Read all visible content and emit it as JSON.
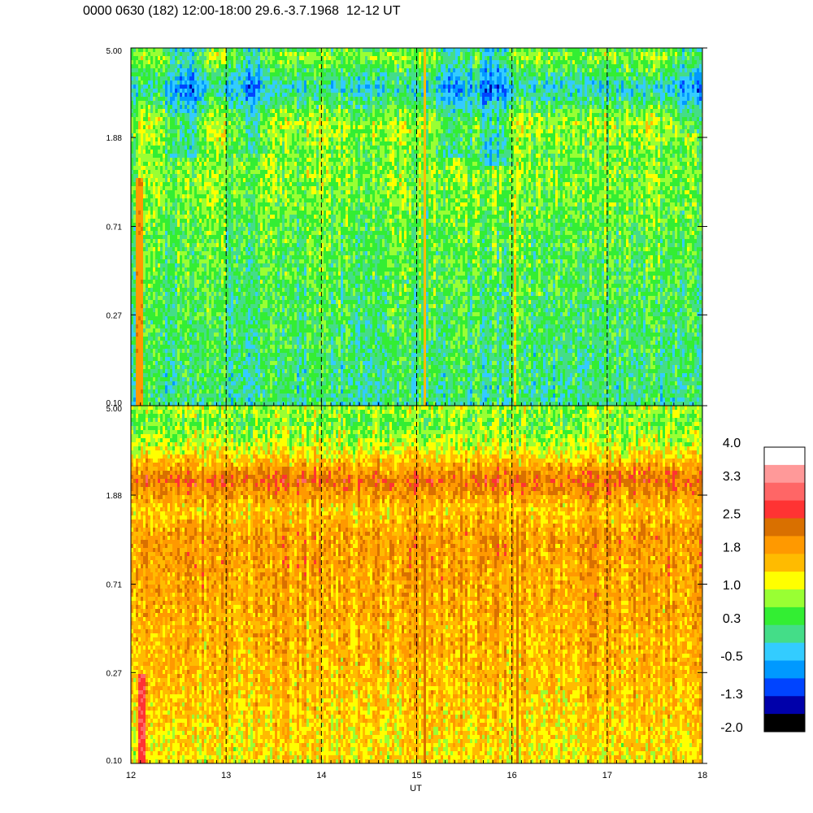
{
  "title": "0000 0630 (182) 12:00-18:00 29.6.-3.7.1968  12-12 UT",
  "chart_data": [
    {
      "type": "heatmap",
      "panel": "top",
      "y_scale": "log",
      "ylim": [
        0.1,
        5.0
      ],
      "y_ticks": [
        "5.00",
        "1.88",
        "0.71",
        "0.27",
        "0.10"
      ],
      "y_tick_values": [
        5.0,
        1.88,
        0.71,
        0.27,
        0.1
      ],
      "xlim": [
        12,
        18
      ],
      "x_ticks": [
        "12",
        "13",
        "14",
        "15",
        "16",
        "17",
        "18"
      ],
      "x_tick_values": [
        12,
        13,
        14,
        15,
        16,
        17,
        18
      ],
      "dashed_lines_x": [
        13,
        14,
        15,
        16,
        17
      ],
      "profile": [
        {
          "y": 0.1,
          "value": 0.1
        },
        {
          "y": 0.27,
          "value": 0.3
        },
        {
          "y": 0.71,
          "value": 0.5
        },
        {
          "y": 1.2,
          "value": 0.7
        },
        {
          "y": 1.6,
          "value": 0.6
        },
        {
          "y": 2.2,
          "value": 0.9
        },
        {
          "y": 3.2,
          "value": -0.2
        },
        {
          "y": 4.6,
          "value": 0.8
        },
        {
          "y": 5.0,
          "value": 0.3
        }
      ],
      "dips": [
        {
          "x": 12.6,
          "min_y": 1.5,
          "delta": -0.9
        },
        {
          "x": 13.3,
          "min_y": 1.6,
          "delta": -0.6
        },
        {
          "x": 15.4,
          "min_y": 1.5,
          "delta": -0.8
        },
        {
          "x": 15.8,
          "min_y": 1.4,
          "delta": -0.9
        },
        {
          "x": 17.9,
          "min_y": 2.0,
          "delta": -0.6
        }
      ],
      "spikes": [
        {
          "x": 12.08,
          "width": 0.08,
          "value": 2.0,
          "max_y": 1.2
        },
        {
          "x": 15.08,
          "width": 0.02,
          "value": 1.6,
          "max_y": 5.0
        },
        {
          "x": 16.03,
          "width": 0.02,
          "value": 1.4,
          "max_y": 1.0
        }
      ]
    },
    {
      "type": "heatmap",
      "panel": "bottom",
      "y_scale": "log",
      "ylim": [
        0.1,
        5.0
      ],
      "y_ticks": [
        "5.00",
        "1.88",
        "0.71",
        "0.27",
        "0.10"
      ],
      "y_tick_values": [
        5.0,
        1.88,
        0.71,
        0.27,
        0.1
      ],
      "xlim": [
        12,
        18
      ],
      "x_ticks": [
        "12",
        "13",
        "14",
        "15",
        "16",
        "17",
        "18"
      ],
      "x_tick_values": [
        12,
        13,
        14,
        15,
        16,
        17,
        18
      ],
      "xlabel": "UT",
      "dashed_lines_x": [
        13,
        14,
        15,
        16,
        17
      ],
      "profile": [
        {
          "y": 0.1,
          "value": 1.3
        },
        {
          "y": 0.27,
          "value": 1.6
        },
        {
          "y": 0.71,
          "value": 1.8
        },
        {
          "y": 1.2,
          "value": 1.9
        },
        {
          "y": 1.6,
          "value": 1.5
        },
        {
          "y": 2.2,
          "value": 2.3
        },
        {
          "y": 3.2,
          "value": 1.0
        },
        {
          "y": 4.2,
          "value": 0.6
        },
        {
          "y": 5.0,
          "value": 0.9
        }
      ],
      "dips": [],
      "spikes": [
        {
          "x": 12.12,
          "width": 0.08,
          "value": 2.8,
          "max_y": 0.27
        },
        {
          "x": 14.1,
          "width": 0.02,
          "value": 2.4,
          "max_y": 1.0
        },
        {
          "x": 15.08,
          "width": 0.02,
          "value": 2.3,
          "max_y": 1.2
        },
        {
          "x": 16.05,
          "width": 0.02,
          "value": 2.3,
          "max_y": 1.5
        }
      ]
    }
  ],
  "colorbar": {
    "labels": [
      "4.0",
      "3.3",
      "2.5",
      "1.8",
      "1.0",
      "0.3",
      "-0.5",
      "-1.3",
      "-2.0"
    ],
    "label_values": [
      4.0,
      3.3,
      2.5,
      1.8,
      1.0,
      0.3,
      -0.5,
      -1.3,
      -2.0
    ],
    "range": [
      -2.0,
      4.0
    ],
    "colors_top_to_bottom": [
      "#ffffff",
      "#ff9999",
      "#ff6666",
      "#ff3333",
      "#d97000",
      "#ff9900",
      "#ffbb00",
      "#ffff00",
      "#99ff33",
      "#33ee33",
      "#44dd88",
      "#33ccff",
      "#0099ff",
      "#0044ff",
      "#0000aa",
      "#000000"
    ]
  }
}
